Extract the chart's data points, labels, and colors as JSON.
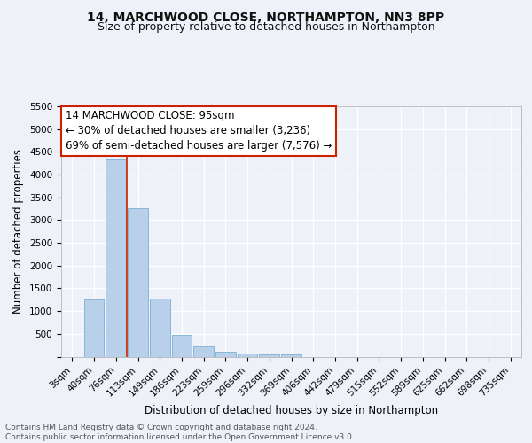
{
  "title": "14, MARCHWOOD CLOSE, NORTHAMPTON, NN3 8PP",
  "subtitle": "Size of property relative to detached houses in Northampton",
  "xlabel": "Distribution of detached houses by size in Northampton",
  "ylabel": "Number of detached properties",
  "categories": [
    "3sqm",
    "40sqm",
    "76sqm",
    "113sqm",
    "149sqm",
    "186sqm",
    "223sqm",
    "259sqm",
    "296sqm",
    "332sqm",
    "369sqm",
    "406sqm",
    "442sqm",
    "479sqm",
    "515sqm",
    "552sqm",
    "589sqm",
    "625sqm",
    "662sqm",
    "698sqm",
    "735sqm"
  ],
  "values": [
    0,
    1260,
    4340,
    3260,
    1280,
    480,
    220,
    100,
    70,
    55,
    40,
    0,
    0,
    0,
    0,
    0,
    0,
    0,
    0,
    0,
    0
  ],
  "bar_color": "#b8d0ea",
  "bar_edge_color": "#7aafd4",
  "vline_x": 2.5,
  "vline_color": "#cc2200",
  "annotation_text": "14 MARCHWOOD CLOSE: 95sqm\n← 30% of detached houses are smaller (3,236)\n69% of semi-detached houses are larger (7,576) →",
  "annotation_box_facecolor": "#ffffff",
  "annotation_box_edgecolor": "#cc2200",
  "ylim": [
    0,
    5500
  ],
  "yticks": [
    0,
    500,
    1000,
    1500,
    2000,
    2500,
    3000,
    3500,
    4000,
    4500,
    5000,
    5500
  ],
  "footnote": "Contains HM Land Registry data © Crown copyright and database right 2024.\nContains public sector information licensed under the Open Government Licence v3.0.",
  "background_color": "#eef2f8",
  "grid_color": "#ffffff",
  "title_fontsize": 10,
  "subtitle_fontsize": 9,
  "label_fontsize": 8.5,
  "tick_fontsize": 7.5,
  "annotation_fontsize": 8.5,
  "footnote_fontsize": 6.5
}
